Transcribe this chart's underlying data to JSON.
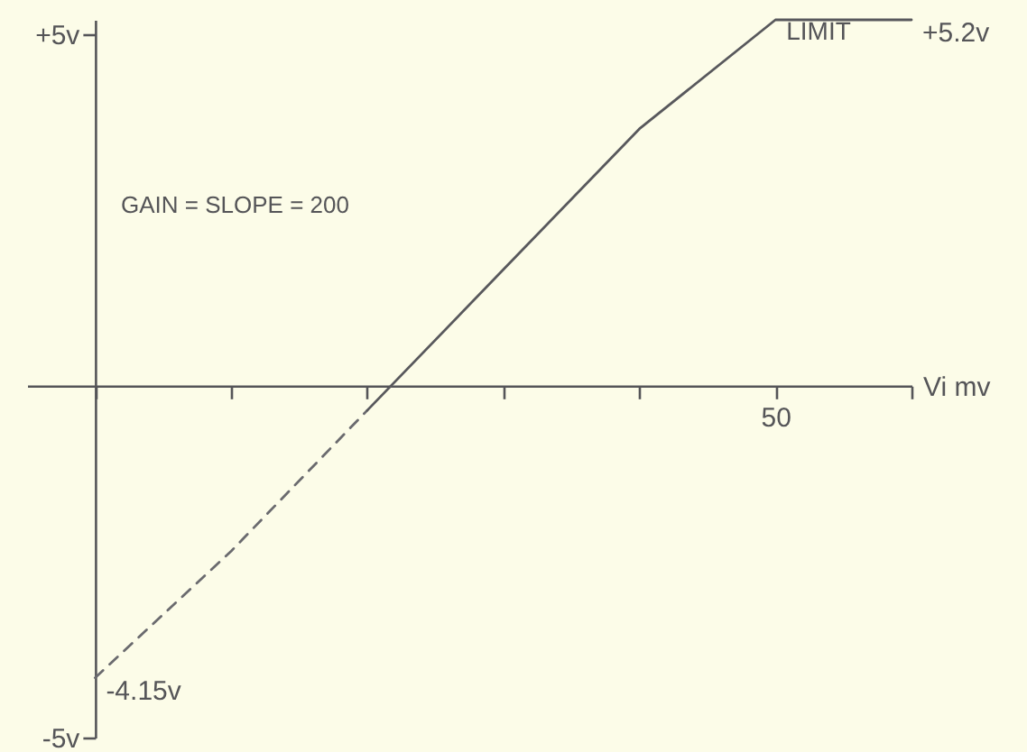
{
  "chart_data": {
    "type": "line",
    "xlabel": "Vi mv",
    "categories": [
      null,
      null,
      null,
      null,
      null,
      "50",
      null
    ],
    "annotations": [
      "GAIN = SLOPE = 200",
      {
        "text": "LIMIT",
        "x": "50",
        "y": 5.2
      }
    ],
    "series": [
      {
        "line_style": "dashed",
        "color": "#6a6a6e",
        "values": [
          -4.15,
          -2.35,
          -0.35,
          null,
          null,
          null,
          null
        ],
        "value_labels": [
          "-4.15v",
          null,
          null,
          null,
          null,
          null,
          null
        ]
      },
      {
        "line_style": "solid",
        "color": "#58585c",
        "values": [
          null,
          null,
          -0.35,
          1.65,
          3.65,
          5.2,
          5.2
        ],
        "value_labels": [
          null,
          null,
          null,
          null,
          null,
          null,
          "+5.2v"
        ]
      }
    ],
    "ylim": [
      -5,
      5.2
    ],
    "yticks": [
      {
        "value": 5,
        "label": "+5v"
      },
      {
        "value": -5,
        "label": "-5v"
      }
    ],
    "grid": false
  }
}
